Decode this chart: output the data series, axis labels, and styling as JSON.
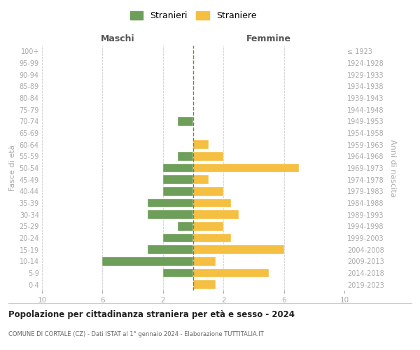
{
  "age_groups": [
    "0-4",
    "5-9",
    "10-14",
    "15-19",
    "20-24",
    "25-29",
    "30-34",
    "35-39",
    "40-44",
    "45-49",
    "50-54",
    "55-59",
    "60-64",
    "65-69",
    "70-74",
    "75-79",
    "80-84",
    "85-89",
    "90-94",
    "95-99",
    "100+"
  ],
  "birth_years": [
    "2019-2023",
    "2014-2018",
    "2009-2013",
    "2004-2008",
    "1999-2003",
    "1994-1998",
    "1989-1993",
    "1984-1988",
    "1979-1983",
    "1974-1978",
    "1969-1973",
    "1964-1968",
    "1959-1963",
    "1954-1958",
    "1949-1953",
    "1944-1948",
    "1939-1943",
    "1934-1938",
    "1929-1933",
    "1924-1928",
    "≤ 1923"
  ],
  "maschi": [
    0,
    2,
    6,
    3,
    2,
    1,
    3,
    3,
    2,
    2,
    2,
    1,
    0,
    0,
    1,
    0,
    0,
    0,
    0,
    0,
    0
  ],
  "femmine": [
    1.5,
    5,
    1.5,
    6,
    2.5,
    2,
    3,
    2.5,
    2,
    1,
    7,
    2,
    1,
    0,
    0,
    0,
    0,
    0,
    0,
    0,
    0
  ],
  "male_color": "#6d9e5a",
  "female_color": "#f5bf42",
  "dashed_line_color": "#808040",
  "title": "Popolazione per cittadinanza straniera per età e sesso - 2024",
  "subtitle": "COMUNE DI CORTALE (CZ) - Dati ISTAT al 1° gennaio 2024 - Elaborazione TUTTITALIA.IT",
  "ylabel_left": "Fasce di età",
  "ylabel_right": "Anni di nascita",
  "xlabel_maschi": "Maschi",
  "xlabel_femmine": "Femmine",
  "legend_male": "Stranieri",
  "legend_female": "Straniere",
  "xlim": 10,
  "background_color": "#ffffff",
  "grid_color": "#cccccc"
}
